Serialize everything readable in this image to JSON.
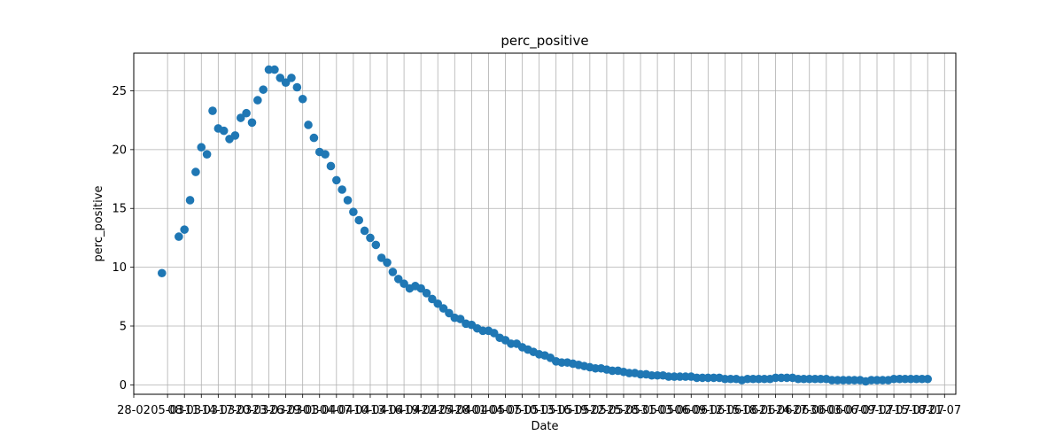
{
  "chart_data": {
    "type": "scatter",
    "title": "perc_positive",
    "xlabel": "Date",
    "ylabel": "perc_positive",
    "grid": true,
    "marker_color": "#1f77b4",
    "xlim": [
      "2020-02-28",
      "2020-07-23"
    ],
    "ylim": [
      -0.8,
      28.2
    ],
    "x_tick_labels": [
      "28-02",
      "05-03",
      "08-03",
      "11-03",
      "14-03",
      "17-03",
      "20-03",
      "23-03",
      "26-03",
      "29-03",
      "01-04",
      "04-04",
      "07-04",
      "10-04",
      "13-04",
      "16-04",
      "19-04",
      "22-04",
      "25-04",
      "28-04",
      "01-05",
      "04-05",
      "07-05",
      "10-05",
      "13-05",
      "16-05",
      "19-05",
      "22-05",
      "25-05",
      "28-05",
      "31-05",
      "03-06",
      "06-06",
      "09-06",
      "12-06",
      "15-06",
      "18-06",
      "21-06",
      "24-06",
      "27-06",
      "30-06",
      "03-07",
      "06-07",
      "09-07",
      "12-07",
      "15-07",
      "18-07",
      "21-07"
    ],
    "y_ticks": [
      0,
      5,
      10,
      15,
      20,
      25
    ],
    "points": [
      [
        "2020-03-04",
        9.5
      ],
      [
        "2020-03-05",
        null
      ],
      [
        "2020-03-07",
        12.6
      ],
      [
        "2020-03-08",
        13.2
      ],
      [
        "2020-03-09",
        15.7
      ],
      [
        "2020-03-10",
        18.1
      ],
      [
        "2020-03-11",
        20.2
      ],
      [
        "2020-03-12",
        19.6
      ],
      [
        "2020-03-13",
        23.3
      ],
      [
        "2020-03-14",
        21.8
      ],
      [
        "2020-03-15",
        21.6
      ],
      [
        "2020-03-16",
        20.9
      ],
      [
        "2020-03-17",
        21.2
      ],
      [
        "2020-03-18",
        22.7
      ],
      [
        "2020-03-19",
        23.1
      ],
      [
        "2020-03-20",
        22.3
      ],
      [
        "2020-03-21",
        24.2
      ],
      [
        "2020-03-22",
        25.1
      ],
      [
        "2020-03-23",
        26.8
      ],
      [
        "2020-03-24",
        26.8
      ],
      [
        "2020-03-25",
        26.1
      ],
      [
        "2020-03-26",
        25.7
      ],
      [
        "2020-03-27",
        26.1
      ],
      [
        "2020-03-28",
        25.3
      ],
      [
        "2020-03-29",
        24.3
      ],
      [
        "2020-03-30",
        22.1
      ],
      [
        "2020-03-31",
        21.0
      ],
      [
        "2020-04-01",
        19.8
      ],
      [
        "2020-04-02",
        19.6
      ],
      [
        "2020-04-03",
        18.6
      ],
      [
        "2020-04-04",
        17.4
      ],
      [
        "2020-04-05",
        16.6
      ],
      [
        "2020-04-06",
        15.7
      ],
      [
        "2020-04-07",
        14.7
      ],
      [
        "2020-04-08",
        14.0
      ],
      [
        "2020-04-09",
        13.1
      ],
      [
        "2020-04-10",
        12.5
      ],
      [
        "2020-04-11",
        11.9
      ],
      [
        "2020-04-12",
        10.8
      ],
      [
        "2020-04-13",
        10.4
      ],
      [
        "2020-04-14",
        9.6
      ],
      [
        "2020-04-15",
        9.0
      ],
      [
        "2020-04-16",
        8.6
      ],
      [
        "2020-04-17",
        8.2
      ],
      [
        "2020-04-18",
        8.4
      ],
      [
        "2020-04-19",
        8.2
      ],
      [
        "2020-04-20",
        7.8
      ],
      [
        "2020-04-21",
        7.3
      ],
      [
        "2020-04-22",
        6.9
      ],
      [
        "2020-04-23",
        6.5
      ],
      [
        "2020-04-24",
        6.1
      ],
      [
        "2020-04-25",
        5.7
      ],
      [
        "2020-04-26",
        5.6
      ],
      [
        "2020-04-27",
        5.2
      ],
      [
        "2020-04-28",
        5.1
      ],
      [
        "2020-04-29",
        4.8
      ],
      [
        "2020-04-30",
        4.6
      ],
      [
        "2020-05-01",
        4.6
      ],
      [
        "2020-05-02",
        4.4
      ],
      [
        "2020-05-03",
        4.0
      ],
      [
        "2020-05-04",
        3.8
      ],
      [
        "2020-05-05",
        3.5
      ],
      [
        "2020-05-06",
        3.5
      ],
      [
        "2020-05-07",
        3.2
      ],
      [
        "2020-05-08",
        3.0
      ],
      [
        "2020-05-09",
        2.8
      ],
      [
        "2020-05-10",
        2.6
      ],
      [
        "2020-05-11",
        2.5
      ],
      [
        "2020-05-12",
        2.3
      ],
      [
        "2020-05-13",
        2.0
      ],
      [
        "2020-05-14",
        1.9
      ],
      [
        "2020-05-15",
        1.9
      ],
      [
        "2020-05-16",
        1.8
      ],
      [
        "2020-05-17",
        1.7
      ],
      [
        "2020-05-18",
        1.6
      ],
      [
        "2020-05-19",
        1.5
      ],
      [
        "2020-05-20",
        1.4
      ],
      [
        "2020-05-21",
        1.4
      ],
      [
        "2020-05-22",
        1.3
      ],
      [
        "2020-05-23",
        1.2
      ],
      [
        "2020-05-24",
        1.2
      ],
      [
        "2020-05-25",
        1.1
      ],
      [
        "2020-05-26",
        1.0
      ],
      [
        "2020-05-27",
        1.0
      ],
      [
        "2020-05-28",
        0.9
      ],
      [
        "2020-05-29",
        0.9
      ],
      [
        "2020-05-30",
        0.8
      ],
      [
        "2020-05-31",
        0.8
      ],
      [
        "2020-06-01",
        0.8
      ],
      [
        "2020-06-02",
        0.7
      ],
      [
        "2020-06-03",
        0.7
      ],
      [
        "2020-06-04",
        0.7
      ],
      [
        "2020-06-05",
        0.7
      ],
      [
        "2020-06-06",
        0.7
      ],
      [
        "2020-06-07",
        0.6
      ],
      [
        "2020-06-08",
        0.6
      ],
      [
        "2020-06-09",
        0.6
      ],
      [
        "2020-06-10",
        0.6
      ],
      [
        "2020-06-11",
        0.6
      ],
      [
        "2020-06-12",
        0.5
      ],
      [
        "2020-06-13",
        0.5
      ],
      [
        "2020-06-14",
        0.5
      ],
      [
        "2020-06-15",
        0.4
      ],
      [
        "2020-06-16",
        0.5
      ],
      [
        "2020-06-17",
        0.5
      ],
      [
        "2020-06-18",
        0.5
      ],
      [
        "2020-06-19",
        0.5
      ],
      [
        "2020-06-20",
        0.5
      ],
      [
        "2020-06-21",
        0.6
      ],
      [
        "2020-06-22",
        0.6
      ],
      [
        "2020-06-23",
        0.6
      ],
      [
        "2020-06-24",
        0.6
      ],
      [
        "2020-06-25",
        0.5
      ],
      [
        "2020-06-26",
        0.5
      ],
      [
        "2020-06-27",
        0.5
      ],
      [
        "2020-06-28",
        0.5
      ],
      [
        "2020-06-29",
        0.5
      ],
      [
        "2020-06-30",
        0.5
      ],
      [
        "2020-07-01",
        0.4
      ],
      [
        "2020-07-02",
        0.4
      ],
      [
        "2020-07-03",
        0.4
      ],
      [
        "2020-07-04",
        0.4
      ],
      [
        "2020-07-05",
        0.4
      ],
      [
        "2020-07-06",
        0.4
      ],
      [
        "2020-07-07",
        0.3
      ],
      [
        "2020-07-08",
        0.4
      ],
      [
        "2020-07-09",
        0.4
      ],
      [
        "2020-07-10",
        0.4
      ],
      [
        "2020-07-11",
        0.4
      ],
      [
        "2020-07-12",
        0.5
      ],
      [
        "2020-07-13",
        0.5
      ],
      [
        "2020-07-14",
        0.5
      ],
      [
        "2020-07-15",
        0.5
      ],
      [
        "2020-07-16",
        0.5
      ],
      [
        "2020-07-17",
        0.5
      ],
      [
        "2020-07-18",
        0.5
      ]
    ]
  }
}
